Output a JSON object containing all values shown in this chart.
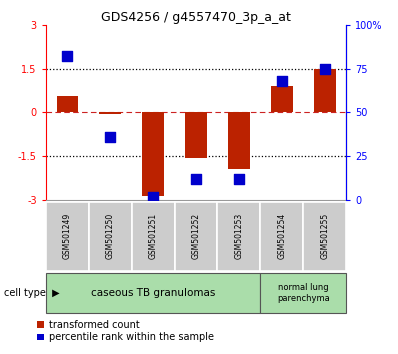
{
  "title": "GDS4256 / g4557470_3p_a_at",
  "samples": [
    "GSM501249",
    "GSM501250",
    "GSM501251",
    "GSM501252",
    "GSM501253",
    "GSM501254",
    "GSM501255"
  ],
  "red_bars": [
    0.55,
    -0.05,
    -2.85,
    -1.55,
    -1.95,
    0.9,
    1.5
  ],
  "blue_dots_pct": [
    82,
    36,
    2,
    12,
    12,
    68,
    75
  ],
  "ylim_left": [
    -3,
    3
  ],
  "left_yticks": [
    -3,
    -1.5,
    0,
    1.5,
    3
  ],
  "right_yticks": [
    0,
    25,
    50,
    75,
    100
  ],
  "right_yticklabels": [
    "0",
    "25",
    "50",
    "75",
    "100%"
  ],
  "bar_color": "#bb2200",
  "dot_color": "#0000cc",
  "bar_width": 0.5,
  "dot_size": 45,
  "background_color": "#ffffff",
  "legend_red_label": "transformed count",
  "legend_blue_label": "percentile rank within the sample",
  "cell_type_label": "cell type",
  "group1_label": "caseous TB granulomas",
  "group2_label": "normal lung\nparenchyma",
  "group1_color": "#aaddaa",
  "group2_color": "#aaddaa",
  "sample_box_color": "#cccccc",
  "title_fontsize": 9,
  "tick_fontsize": 7,
  "label_fontsize": 6.5,
  "legend_fontsize": 7
}
